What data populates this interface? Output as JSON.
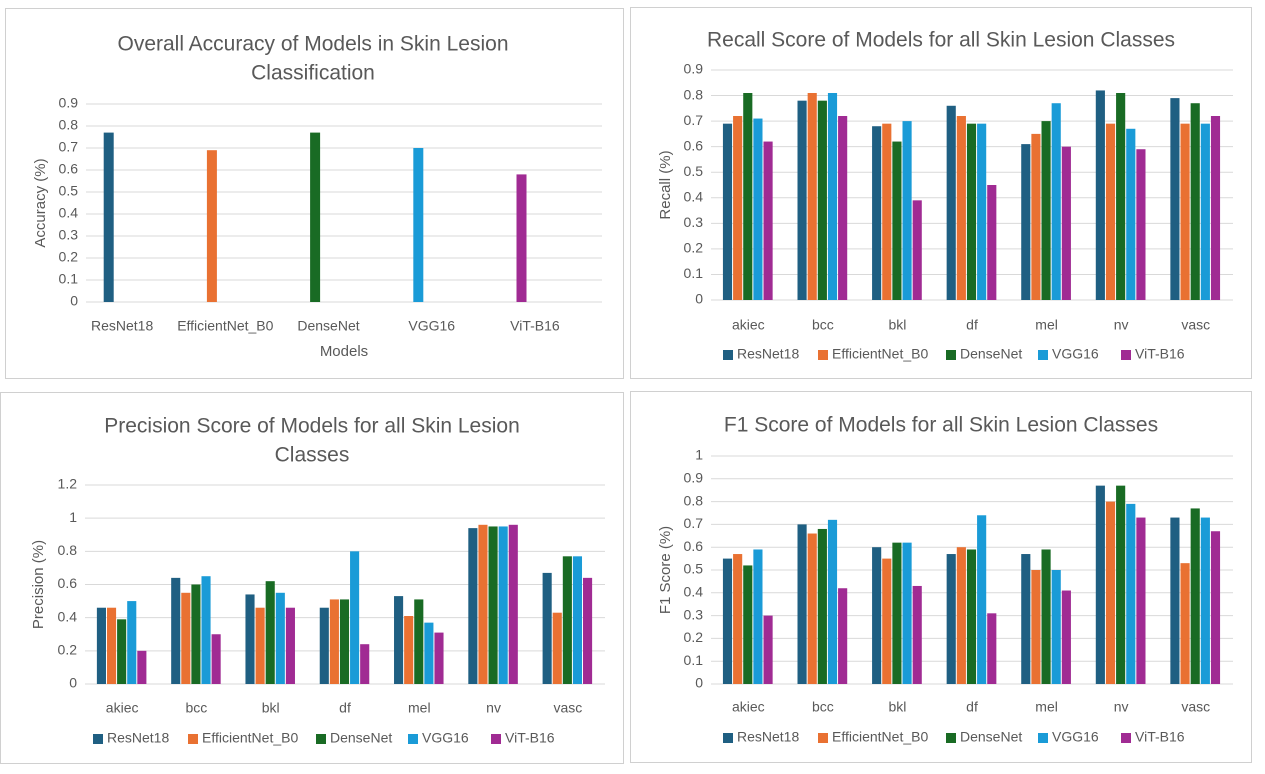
{
  "colors": {
    "ResNet18": "#1f5f82",
    "EfficientNet_B0": "#e97132",
    "DenseNet": "#196b24",
    "VGG16": "#1a9bd7",
    "ViT-B16": "#a02b93"
  },
  "chart_data": [
    {
      "id": "accuracy",
      "type": "bar",
      "title": [
        "Overall Accuracy of Models in Skin Lesion",
        "Classification"
      ],
      "xlabel": "Models",
      "ylabel": "Accuracy (%)",
      "ylim": [
        0,
        0.9
      ],
      "yticks": [
        "0",
        "0.1",
        "0.2",
        "0.3",
        "0.4",
        "0.5",
        "0.6",
        "0.7",
        "0.8",
        "0.9"
      ],
      "grid": true,
      "legend": "none",
      "categories": [
        "ResNet18",
        "EfficientNet_B0",
        "DenseNet",
        "VGG16",
        "ViT-B16"
      ],
      "values": [
        0.77,
        0.69,
        0.77,
        0.7,
        0.58
      ]
    },
    {
      "id": "recall",
      "type": "bar",
      "title": [
        "Recall Score of Models for all Skin Lesion Classes"
      ],
      "xlabel": "",
      "ylabel": "Recall (%)",
      "ylim": [
        0,
        0.9
      ],
      "yticks": [
        "0",
        "0.1",
        "0.2",
        "0.3",
        "0.4",
        "0.5",
        "0.6",
        "0.7",
        "0.8",
        "0.9"
      ],
      "grid": true,
      "legend": "bottom",
      "categories": [
        "akiec",
        "bcc",
        "bkl",
        "df",
        "mel",
        "nv",
        "vasc"
      ],
      "series": [
        {
          "name": "ResNet18",
          "values": [
            0.69,
            0.78,
            0.68,
            0.76,
            0.61,
            0.82,
            0.79
          ]
        },
        {
          "name": "EfficientNet_B0",
          "values": [
            0.72,
            0.81,
            0.69,
            0.72,
            0.65,
            0.69,
            0.69
          ]
        },
        {
          "name": "DenseNet",
          "values": [
            0.81,
            0.78,
            0.62,
            0.69,
            0.7,
            0.81,
            0.77
          ]
        },
        {
          "name": "VGG16",
          "values": [
            0.71,
            0.81,
            0.7,
            0.69,
            0.77,
            0.67,
            0.69
          ]
        },
        {
          "name": "ViT-B16",
          "values": [
            0.62,
            0.72,
            0.39,
            0.45,
            0.6,
            0.59,
            0.72
          ]
        }
      ]
    },
    {
      "id": "precision",
      "type": "bar",
      "title": [
        "Precision Score of Models for all Skin Lesion",
        "Classes"
      ],
      "xlabel": "",
      "ylabel": "Precision (%)",
      "ylim": [
        0,
        1.2
      ],
      "yticks": [
        "0",
        "0.2",
        "0.4",
        "0.6",
        "0.8",
        "1",
        "1.2"
      ],
      "grid": true,
      "legend": "bottom",
      "categories": [
        "akiec",
        "bcc",
        "bkl",
        "df",
        "mel",
        "nv",
        "vasc"
      ],
      "series": [
        {
          "name": "ResNet18",
          "values": [
            0.46,
            0.64,
            0.54,
            0.46,
            0.53,
            0.94,
            0.67
          ]
        },
        {
          "name": "EfficientNet_B0",
          "values": [
            0.46,
            0.55,
            0.46,
            0.51,
            0.41,
            0.96,
            0.43
          ]
        },
        {
          "name": "DenseNet",
          "values": [
            0.39,
            0.6,
            0.62,
            0.51,
            0.51,
            0.95,
            0.77
          ]
        },
        {
          "name": "VGG16",
          "values": [
            0.5,
            0.65,
            0.55,
            0.8,
            0.37,
            0.95,
            0.77
          ]
        },
        {
          "name": "ViT-B16",
          "values": [
            0.2,
            0.3,
            0.46,
            0.24,
            0.31,
            0.96,
            0.64
          ]
        }
      ]
    },
    {
      "id": "f1",
      "type": "bar",
      "title": [
        "F1 Score of Models for all Skin Lesion Classes"
      ],
      "xlabel": "",
      "ylabel": "F1 Score  (%)",
      "ylim": [
        0,
        1
      ],
      "yticks": [
        "0",
        "0.1",
        "0.2",
        "0.3",
        "0.4",
        "0.5",
        "0.6",
        "0.7",
        "0.8",
        "0.9",
        "1"
      ],
      "grid": true,
      "legend": "bottom",
      "categories": [
        "akiec",
        "bcc",
        "bkl",
        "df",
        "mel",
        "nv",
        "vasc"
      ],
      "series": [
        {
          "name": "ResNet18",
          "values": [
            0.55,
            0.7,
            0.6,
            0.57,
            0.57,
            0.87,
            0.73
          ]
        },
        {
          "name": "EfficientNet_B0",
          "values": [
            0.57,
            0.66,
            0.55,
            0.6,
            0.5,
            0.8,
            0.53
          ]
        },
        {
          "name": "DenseNet",
          "values": [
            0.52,
            0.68,
            0.62,
            0.59,
            0.59,
            0.87,
            0.77
          ]
        },
        {
          "name": "VGG16",
          "values": [
            0.59,
            0.72,
            0.62,
            0.74,
            0.5,
            0.79,
            0.73
          ]
        },
        {
          "name": "ViT-B16",
          "values": [
            0.3,
            0.42,
            0.43,
            0.31,
            0.41,
            0.73,
            0.67
          ]
        }
      ]
    }
  ]
}
